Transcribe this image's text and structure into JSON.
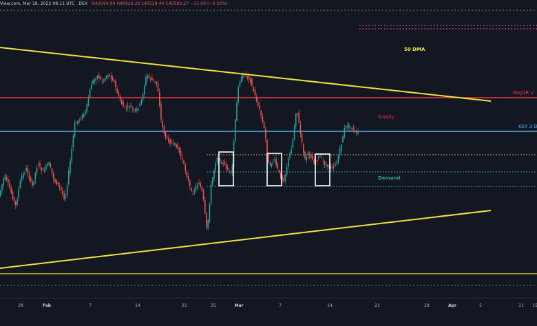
{
  "header": {
    "source": "View.com, Mar 18, 2022 08:11 UTC",
    "symbol": "DEX",
    "ohlc": "O40594.99  H40626.20  L40528.46  C40583.27  −11.00 (−0.03%)"
  },
  "annotations": {
    "dma": "50 DMA",
    "major": "MAJOR V",
    "supply": "Supply",
    "key": "KEY 3 D",
    "demand": "Demand"
  },
  "colors": {
    "background": "#131722",
    "up": "#26a69a",
    "down": "#ef5350",
    "trendline": "#f2e33a",
    "major_level": "#f23645",
    "key_level": "#4db5f5",
    "supply_zone": "#b9a739",
    "demand_zone": "#26a69a",
    "box": "#ffffff"
  },
  "chart_data": {
    "type": "candlestick",
    "x_ticks": [
      "28",
      "Feb",
      "7",
      "14",
      "21",
      "25",
      "Mar",
      "7",
      "14",
      "21",
      "28",
      "Apr",
      "5",
      "11",
      "15"
    ],
    "x_ticks_bold": [
      "Feb",
      "Mar",
      "Apr"
    ],
    "grid": false,
    "legend": "none"
  }
}
